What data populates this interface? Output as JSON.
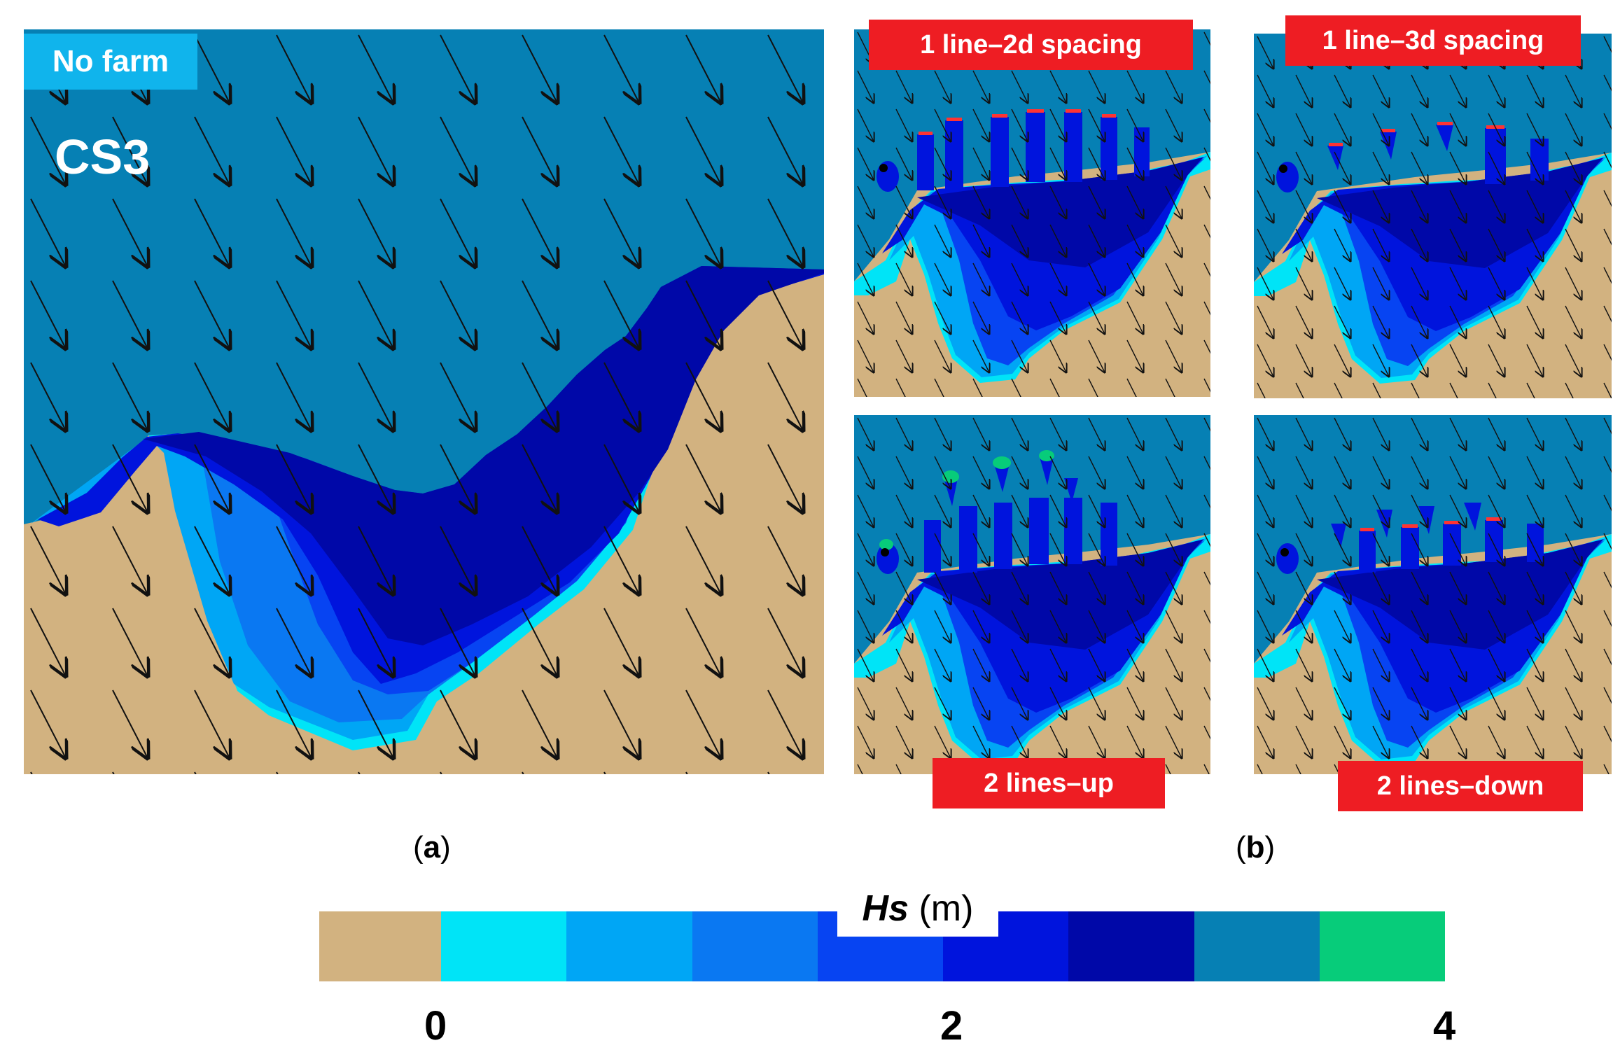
{
  "panel_a": {
    "scenario_label": "No farm",
    "case_label": "CS3",
    "caption_letter": "a"
  },
  "panel_b": {
    "caption_letter": "b",
    "scenarios": [
      {
        "label": "1 line–2d spacing"
      },
      {
        "label": "1 line–3d spacing"
      },
      {
        "label": "2 lines–up"
      },
      {
        "label": "2 lines–down"
      }
    ]
  },
  "colorbar": {
    "variable": "Hs",
    "unit": "(m)",
    "tick_labels": [
      "0",
      "2",
      "4"
    ],
    "color_classes": [
      "#d2b280",
      "#00e4f7",
      "#00a6f5",
      "#0a78f2",
      "#0744f2",
      "#0014dd",
      "#0008a8",
      "#0680b4",
      "#07cc7a"
    ]
  },
  "colors": {
    "land": "#d2b280",
    "offshore_sea": "#0680b4",
    "arrow": "#111111",
    "label_red": "#ee1d23",
    "label_cyan": "#10b4ec"
  }
}
